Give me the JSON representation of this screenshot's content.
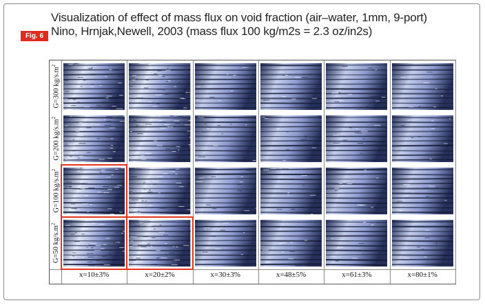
{
  "figure": {
    "badge": "Fig. 6",
    "caption_line1": "Visualization of effect of mass flux on void fraction (air–water, 1mm, 9-port)",
    "caption_line2": "Nino, Hrnjak,Newell, 2003 (mass flux 100 kg/m2s = 2.3 oz/in2s)"
  },
  "grid": {
    "rows": [
      {
        "label": "G=300 kg/s.m",
        "sup": "2"
      },
      {
        "label": "G=200 kg/s.m",
        "sup": "2"
      },
      {
        "label": "G=100 kg/s.m",
        "sup": "2"
      },
      {
        "label": "G=50 kg/s.m",
        "sup": "2"
      }
    ],
    "columns": [
      "x=10±3%",
      "x=20±2%",
      "x=30±3%",
      "x=48±5%",
      "x=61±3%",
      "x=80±1%"
    ],
    "highlighted_cells": [
      [
        2,
        0
      ],
      [
        3,
        0
      ],
      [
        3,
        1
      ]
    ],
    "colors": {
      "channel_dark": "#1c2340",
      "channel_light": "#c9d4ee",
      "highlight": "#e3331f"
    }
  }
}
